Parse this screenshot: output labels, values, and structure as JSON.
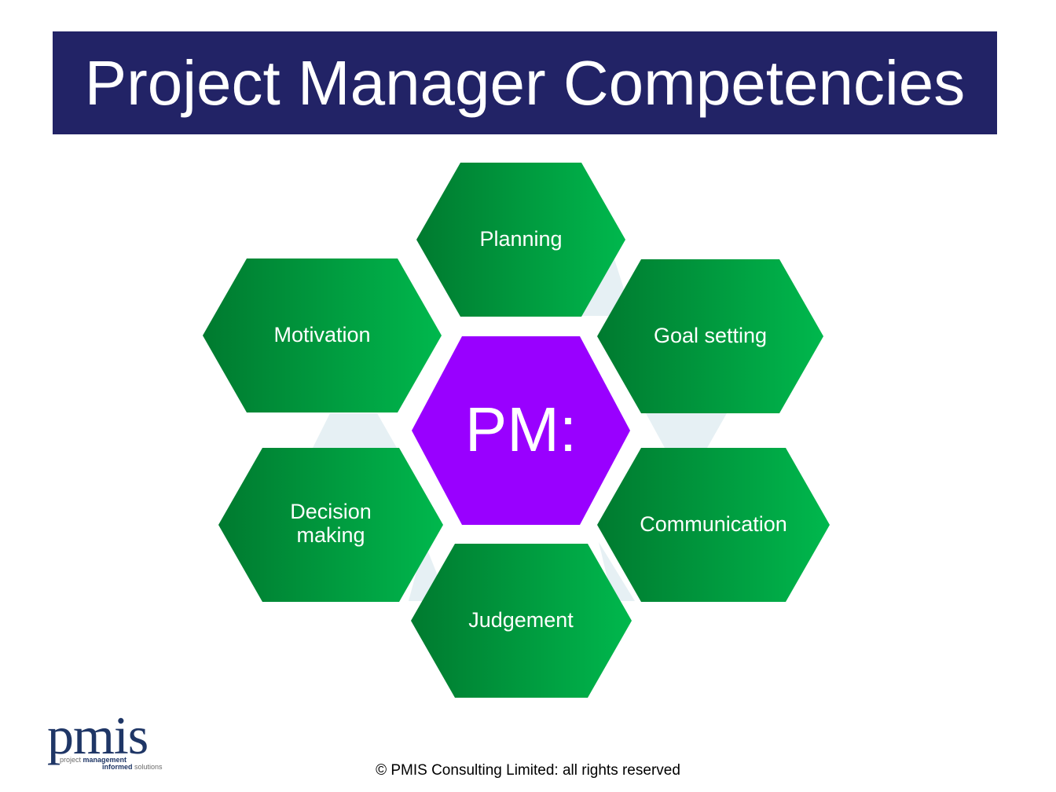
{
  "title": "Project Manager Competencies",
  "center": {
    "label": "PM:",
    "color": "#9900ff"
  },
  "competencies": [
    {
      "id": "planning",
      "label": "Planning"
    },
    {
      "id": "goal-setting",
      "label": "Goal setting"
    },
    {
      "id": "communication",
      "label": "Communication"
    },
    {
      "id": "judgement",
      "label": "Judgement"
    },
    {
      "id": "decision-making",
      "label_line1": "Decision",
      "label_line2": "making"
    },
    {
      "id": "motivation",
      "label": "Motivation"
    }
  ],
  "colors": {
    "title_bar": "#222366",
    "hex_green_dark": "#007a2f",
    "hex_green_light": "#00b84d",
    "connector": "#e6f0f4"
  },
  "logo": {
    "word": "pmis",
    "tag_line1_a": "project ",
    "tag_line1_b": "management",
    "tag_line2_a": "informed",
    "tag_line2_b": " solutions"
  },
  "footer": {
    "copyright": "© PMIS Consulting Limited: all rights reserved"
  }
}
